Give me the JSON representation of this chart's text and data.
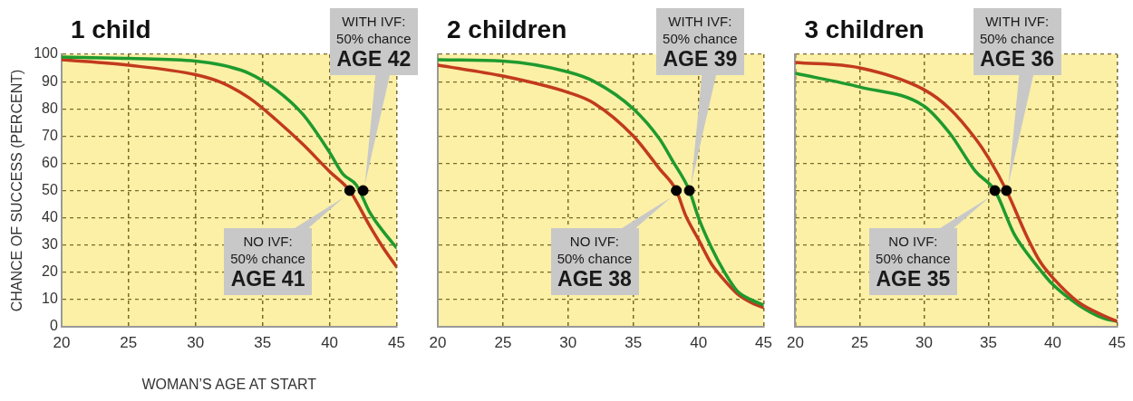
{
  "chart_data": [
    {
      "type": "line",
      "title": "1 child",
      "xlabel": "WOMAN’S AGE AT START",
      "ylabel": "CHANCE OF SUCCESS (PERCENT)",
      "xlim": [
        20,
        45
      ],
      "ylim": [
        0,
        100
      ],
      "xticks": [
        20,
        25,
        30,
        35,
        40,
        45
      ],
      "yticks": [
        0,
        10,
        20,
        30,
        40,
        50,
        60,
        70,
        80,
        90,
        100
      ],
      "grid": true,
      "marker": "none",
      "line_style": "solid",
      "series": [
        {
          "color": "#1f9a2e",
          "x": [
            20,
            25,
            30,
            32,
            34,
            36,
            38,
            40,
            41,
            42,
            43,
            44,
            45
          ],
          "values": [
            99,
            98.5,
            97.5,
            96,
            93,
            87,
            78,
            64,
            56,
            52,
            42,
            35,
            29
          ]
        },
        {
          "color": "#c23a1e",
          "x": [
            20,
            25,
            30,
            32,
            34,
            36,
            38,
            40,
            41.5,
            42,
            43,
            44,
            45
          ],
          "values": [
            98,
            96,
            92.5,
            89.5,
            84,
            76,
            67,
            57,
            50,
            46,
            37,
            29,
            22
          ]
        },
        {
          "type": "scatter",
          "marker": "circle",
          "color": "#000000",
          "x": [
            41.5,
            42.5
          ],
          "values": [
            50,
            50
          ]
        }
      ],
      "annotations": [
        {
          "text": "NO IVF:\n50% chance\nAGE 41",
          "x": 41.5,
          "y": 50
        },
        {
          "text": "WITH IVF:\n50% chance\nAGE 42",
          "x": 42.5,
          "y": 50
        }
      ]
    },
    {
      "type": "line",
      "title": "2 children",
      "xlim": [
        20,
        45
      ],
      "ylim": [
        0,
        100
      ],
      "xticks": [
        20,
        25,
        30,
        35,
        40,
        45
      ],
      "yticks": [
        0,
        10,
        20,
        30,
        40,
        50,
        60,
        70,
        80,
        90,
        100
      ],
      "grid": true,
      "tick_labels": "x",
      "marker": "none",
      "line_style": "solid",
      "series": [
        {
          "color": "#1f9a2e",
          "x": [
            20,
            25,
            30,
            32,
            35,
            37,
            38,
            39.3,
            40,
            41,
            42,
            43,
            44,
            45
          ],
          "values": [
            98,
            97.5,
            93.5,
            90,
            80,
            69,
            61,
            50,
            40,
            29,
            20,
            13,
            10,
            8
          ]
        },
        {
          "color": "#c23a1e",
          "x": [
            20,
            25,
            30,
            32,
            35,
            37,
            38.3,
            39,
            40,
            41,
            42,
            43,
            44,
            45
          ],
          "values": [
            96,
            92,
            86,
            82,
            70,
            58,
            50,
            41,
            32,
            23,
            17,
            12,
            9,
            7
          ]
        },
        {
          "type": "scatter",
          "marker": "circle",
          "color": "#000000",
          "x": [
            38.3,
            39.3
          ],
          "values": [
            50,
            50
          ]
        }
      ],
      "annotations": [
        {
          "text": "NO IVF:\n50% chance\nAGE 38",
          "x": 38.3,
          "y": 50
        },
        {
          "text": "WITH IVF:\n50% chance\nAGE 39",
          "x": 39.3,
          "y": 50
        }
      ]
    },
    {
      "type": "line",
      "title": "3 children",
      "xlim": [
        20,
        45
      ],
      "ylim": [
        0,
        100
      ],
      "xticks": [
        20,
        25,
        30,
        35,
        40,
        45
      ],
      "yticks": [
        0,
        10,
        20,
        30,
        40,
        50,
        60,
        70,
        80,
        90,
        100
      ],
      "grid": true,
      "tick_labels": "x",
      "marker": "none",
      "line_style": "solid",
      "series": [
        {
          "color": "#c23a1e",
          "x": [
            20,
            25,
            30,
            32,
            34,
            35,
            36.4,
            38,
            39,
            40,
            42,
            44,
            45
          ],
          "values": [
            97,
            95,
            87,
            80,
            69,
            62,
            50,
            33,
            24,
            18,
            9,
            4,
            2
          ]
        },
        {
          "color": "#1f9a2e",
          "x": [
            20,
            25,
            30,
            32,
            34,
            35.5,
            37,
            38,
            39,
            40,
            42,
            44,
            45
          ],
          "values": [
            93,
            88,
            81,
            71,
            57,
            50,
            34,
            27,
            21,
            15.5,
            8,
            3,
            2
          ]
        },
        {
          "type": "scatter",
          "marker": "circle",
          "color": "#000000",
          "x": [
            35.5,
            36.4
          ],
          "values": [
            50,
            50
          ]
        }
      ],
      "annotations": [
        {
          "text": "NO IVF:\n50% chance\nAGE 35",
          "x": 35.5,
          "y": 50
        },
        {
          "text": "WITH IVF:\n50% chance\nAGE 36",
          "x": 36.4,
          "y": 50
        }
      ]
    }
  ]
}
